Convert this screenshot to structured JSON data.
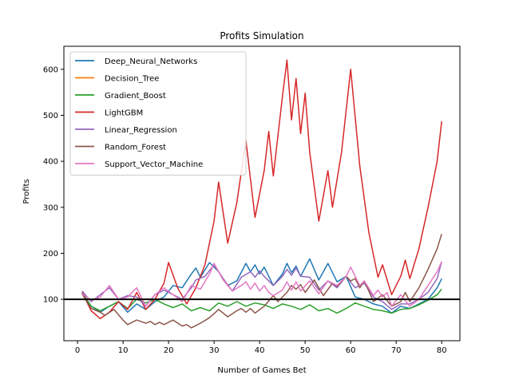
{
  "chart_data": {
    "type": "line",
    "title": "Profits Simulation",
    "xlabel": "Number of Games Bet",
    "ylabel": "Profits",
    "xlim": [
      -3,
      84
    ],
    "ylim": [
      10,
      650
    ],
    "xticks": [
      0,
      10,
      20,
      30,
      40,
      50,
      60,
      70,
      80
    ],
    "yticks": [
      100,
      200,
      300,
      400,
      500,
      600
    ],
    "baseline": {
      "y": 100,
      "color": "#000000"
    },
    "legend_position": "upper-left",
    "series": [
      {
        "name": "Deep_Neural_Networks",
        "color": "#1f77b4",
        "points": [
          [
            1,
            115
          ],
          [
            3,
            85
          ],
          [
            5,
            72
          ],
          [
            7,
            85
          ],
          [
            9,
            95
          ],
          [
            11,
            72
          ],
          [
            13,
            90
          ],
          [
            15,
            78
          ],
          [
            17,
            95
          ],
          [
            19,
            105
          ],
          [
            21,
            130
          ],
          [
            23,
            125
          ],
          [
            25,
            155
          ],
          [
            26,
            168
          ],
          [
            27,
            148
          ],
          [
            29,
            180
          ],
          [
            31,
            160
          ],
          [
            33,
            130
          ],
          [
            35,
            140
          ],
          [
            37,
            178
          ],
          [
            38,
            160
          ],
          [
            39,
            175
          ],
          [
            40,
            155
          ],
          [
            41,
            170
          ],
          [
            43,
            130
          ],
          [
            45,
            155
          ],
          [
            46,
            178
          ],
          [
            47,
            158
          ],
          [
            48,
            172
          ],
          [
            49,
            150
          ],
          [
            51,
            188
          ],
          [
            53,
            142
          ],
          [
            55,
            178
          ],
          [
            57,
            138
          ],
          [
            59,
            150
          ],
          [
            61,
            105
          ],
          [
            63,
            100
          ],
          [
            65,
            90
          ],
          [
            67,
            85
          ],
          [
            69,
            70
          ],
          [
            71,
            85
          ],
          [
            73,
            80
          ],
          [
            75,
            90
          ],
          [
            77,
            100
          ],
          [
            79,
            125
          ],
          [
            80,
            145
          ]
        ]
      },
      {
        "name": "Decision_Tree",
        "color": "#ff7f0e",
        "points": [
          [
            1,
            100
          ],
          [
            80,
            100
          ]
        ]
      },
      {
        "name": "Gradient_Boost",
        "color": "#2ca02c",
        "points": [
          [
            1,
            115
          ],
          [
            3,
            85
          ],
          [
            5,
            75
          ],
          [
            7,
            85
          ],
          [
            9,
            95
          ],
          [
            11,
            80
          ],
          [
            13,
            100
          ],
          [
            15,
            92
          ],
          [
            17,
            100
          ],
          [
            19,
            90
          ],
          [
            21,
            82
          ],
          [
            23,
            90
          ],
          [
            25,
            75
          ],
          [
            27,
            82
          ],
          [
            29,
            75
          ],
          [
            31,
            92
          ],
          [
            33,
            85
          ],
          [
            35,
            95
          ],
          [
            37,
            85
          ],
          [
            39,
            92
          ],
          [
            41,
            88
          ],
          [
            43,
            80
          ],
          [
            45,
            90
          ],
          [
            47,
            85
          ],
          [
            49,
            78
          ],
          [
            51,
            88
          ],
          [
            53,
            75
          ],
          [
            55,
            80
          ],
          [
            57,
            70
          ],
          [
            59,
            80
          ],
          [
            61,
            92
          ],
          [
            63,
            85
          ],
          [
            65,
            78
          ],
          [
            67,
            75
          ],
          [
            69,
            70
          ],
          [
            71,
            78
          ],
          [
            73,
            80
          ],
          [
            75,
            88
          ],
          [
            77,
            98
          ],
          [
            79,
            110
          ],
          [
            80,
            122
          ]
        ]
      },
      {
        "name": "LightGBM",
        "color": "#d62728",
        "points": [
          [
            1,
            115
          ],
          [
            3,
            75
          ],
          [
            5,
            58
          ],
          [
            7,
            72
          ],
          [
            9,
            95
          ],
          [
            11,
            78
          ],
          [
            13,
            115
          ],
          [
            15,
            78
          ],
          [
            17,
            100
          ],
          [
            19,
            135
          ],
          [
            20,
            180
          ],
          [
            22,
            125
          ],
          [
            24,
            90
          ],
          [
            26,
            125
          ],
          [
            28,
            175
          ],
          [
            30,
            270
          ],
          [
            31,
            355
          ],
          [
            33,
            222
          ],
          [
            35,
            310
          ],
          [
            37,
            445
          ],
          [
            39,
            278
          ],
          [
            41,
            380
          ],
          [
            42,
            465
          ],
          [
            43,
            368
          ],
          [
            45,
            540
          ],
          [
            46,
            620
          ],
          [
            47,
            490
          ],
          [
            48,
            580
          ],
          [
            49,
            460
          ],
          [
            50,
            548
          ],
          [
            51,
            420
          ],
          [
            53,
            270
          ],
          [
            55,
            380
          ],
          [
            56,
            300
          ],
          [
            58,
            420
          ],
          [
            60,
            600
          ],
          [
            62,
            390
          ],
          [
            64,
            245
          ],
          [
            66,
            148
          ],
          [
            67,
            175
          ],
          [
            69,
            110
          ],
          [
            71,
            150
          ],
          [
            72,
            185
          ],
          [
            73,
            145
          ],
          [
            75,
            210
          ],
          [
            77,
            300
          ],
          [
            79,
            400
          ],
          [
            80,
            487
          ]
        ]
      },
      {
        "name": "Linear_Regression",
        "color": "#9467bd",
        "points": [
          [
            1,
            118
          ],
          [
            3,
            95
          ],
          [
            5,
            110
          ],
          [
            7,
            125
          ],
          [
            9,
            100
          ],
          [
            11,
            108
          ],
          [
            13,
            105
          ],
          [
            15,
            85
          ],
          [
            17,
            110
          ],
          [
            19,
            120
          ],
          [
            21,
            110
          ],
          [
            23,
            100
          ],
          [
            25,
            125
          ],
          [
            26,
            142
          ],
          [
            28,
            150
          ],
          [
            30,
            175
          ],
          [
            32,
            145
          ],
          [
            34,
            118
          ],
          [
            36,
            148
          ],
          [
            38,
            160
          ],
          [
            39,
            148
          ],
          [
            40,
            162
          ],
          [
            41,
            150
          ],
          [
            43,
            130
          ],
          [
            45,
            150
          ],
          [
            46,
            165
          ],
          [
            47,
            152
          ],
          [
            48,
            168
          ],
          [
            49,
            150
          ],
          [
            51,
            148
          ],
          [
            53,
            120
          ],
          [
            55,
            140
          ],
          [
            57,
            125
          ],
          [
            59,
            150
          ],
          [
            61,
            125
          ],
          [
            63,
            135
          ],
          [
            65,
            105
          ],
          [
            67,
            95
          ],
          [
            69,
            78
          ],
          [
            71,
            90
          ],
          [
            73,
            90
          ],
          [
            75,
            100
          ],
          [
            77,
            115
          ],
          [
            79,
            145
          ],
          [
            80,
            182
          ]
        ]
      },
      {
        "name": "Random_Forest",
        "color": "#8c564b",
        "points": [
          [
            1,
            112
          ],
          [
            3,
            80
          ],
          [
            5,
            72
          ],
          [
            6,
            65
          ],
          [
            8,
            78
          ],
          [
            10,
            55
          ],
          [
            11,
            45
          ],
          [
            13,
            55
          ],
          [
            15,
            48
          ],
          [
            16,
            52
          ],
          [
            17,
            45
          ],
          [
            18,
            50
          ],
          [
            19,
            45
          ],
          [
            21,
            55
          ],
          [
            23,
            42
          ],
          [
            24,
            45
          ],
          [
            25,
            38
          ],
          [
            27,
            48
          ],
          [
            29,
            60
          ],
          [
            31,
            78
          ],
          [
            33,
            62
          ],
          [
            35,
            75
          ],
          [
            36,
            80
          ],
          [
            37,
            72
          ],
          [
            38,
            80
          ],
          [
            39,
            70
          ],
          [
            41,
            85
          ],
          [
            43,
            108
          ],
          [
            44,
            95
          ],
          [
            46,
            115
          ],
          [
            47,
            130
          ],
          [
            48,
            122
          ],
          [
            49,
            132
          ],
          [
            50,
            115
          ],
          [
            52,
            142
          ],
          [
            54,
            108
          ],
          [
            56,
            135
          ],
          [
            57,
            128
          ],
          [
            59,
            150
          ],
          [
            60,
            140
          ],
          [
            61,
            145
          ],
          [
            62,
            125
          ],
          [
            63,
            140
          ],
          [
            65,
            95
          ],
          [
            67,
            110
          ],
          [
            69,
            85
          ],
          [
            71,
            95
          ],
          [
            72,
            115
          ],
          [
            73,
            95
          ],
          [
            75,
            125
          ],
          [
            77,
            165
          ],
          [
            79,
            210
          ],
          [
            80,
            242
          ]
        ]
      },
      {
        "name": "Support_Vector_Machine",
        "color": "#e377c2",
        "points": [
          [
            1,
            112
          ],
          [
            3,
            98
          ],
          [
            5,
            105
          ],
          [
            7,
            130
          ],
          [
            9,
            100
          ],
          [
            11,
            105
          ],
          [
            13,
            125
          ],
          [
            15,
            85
          ],
          [
            17,
            110
          ],
          [
            19,
            125
          ],
          [
            21,
            110
          ],
          [
            23,
            95
          ],
          [
            25,
            130
          ],
          [
            27,
            122
          ],
          [
            29,
            155
          ],
          [
            30,
            178
          ],
          [
            32,
            142
          ],
          [
            34,
            118
          ],
          [
            36,
            130
          ],
          [
            37,
            138
          ],
          [
            38,
            122
          ],
          [
            39,
            135
          ],
          [
            40,
            118
          ],
          [
            41,
            130
          ],
          [
            42,
            115
          ],
          [
            43,
            108
          ],
          [
            45,
            120
          ],
          [
            46,
            138
          ],
          [
            47,
            120
          ],
          [
            48,
            138
          ],
          [
            49,
            118
          ],
          [
            51,
            140
          ],
          [
            53,
            112
          ],
          [
            55,
            140
          ],
          [
            57,
            130
          ],
          [
            59,
            150
          ],
          [
            60,
            170
          ],
          [
            62,
            130
          ],
          [
            63,
            140
          ],
          [
            65,
            108
          ],
          [
            66,
            120
          ],
          [
            67,
            105
          ],
          [
            68,
            115
          ],
          [
            69,
            85
          ],
          [
            71,
            110
          ],
          [
            73,
            85
          ],
          [
            75,
            100
          ],
          [
            77,
            130
          ],
          [
            79,
            160
          ],
          [
            80,
            182
          ]
        ]
      }
    ]
  }
}
